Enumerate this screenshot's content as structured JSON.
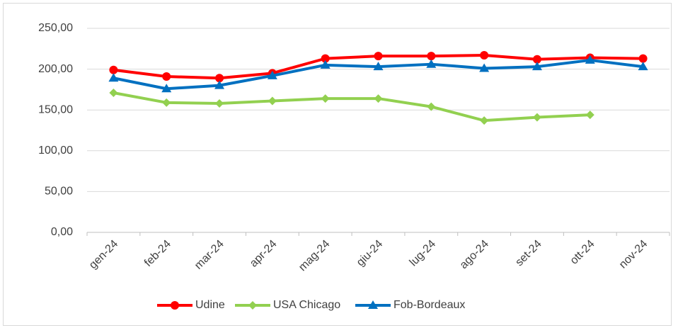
{
  "chart_data": {
    "type": "line",
    "categories": [
      "gen-24",
      "feb-24",
      "mar-24",
      "apr-24",
      "mag-24",
      "giu-24",
      "lug-24",
      "ago-24",
      "set-24",
      "ott-24",
      "nov-24"
    ],
    "series": [
      {
        "name": "Udine",
        "color": "#ff0000",
        "marker": "circle",
        "values": [
          199,
          191,
          189,
          195,
          213,
          216,
          216,
          217,
          212,
          214,
          213
        ]
      },
      {
        "name": "USA Chicago",
        "color": "#92d050",
        "marker": "diamond",
        "values": [
          171,
          159,
          158,
          161,
          164,
          164,
          154,
          137,
          141,
          144,
          null
        ]
      },
      {
        "name": "Fob-Bordeaux",
        "color": "#0070c0",
        "marker": "triangle",
        "values": [
          189,
          176,
          180,
          192,
          205,
          203,
          206,
          201,
          203,
          211,
          203
        ]
      }
    ],
    "ylim": [
      0,
      250
    ],
    "yticks": [
      {
        "value": 0,
        "label": "0,00"
      },
      {
        "value": 50,
        "label": "50,00"
      },
      {
        "value": 100,
        "label": "100,00"
      },
      {
        "value": 150,
        "label": "150,00"
      },
      {
        "value": 200,
        "label": "200,00"
      },
      {
        "value": 250,
        "label": "250,00"
      }
    ],
    "grid": true,
    "legend": "bottom"
  }
}
